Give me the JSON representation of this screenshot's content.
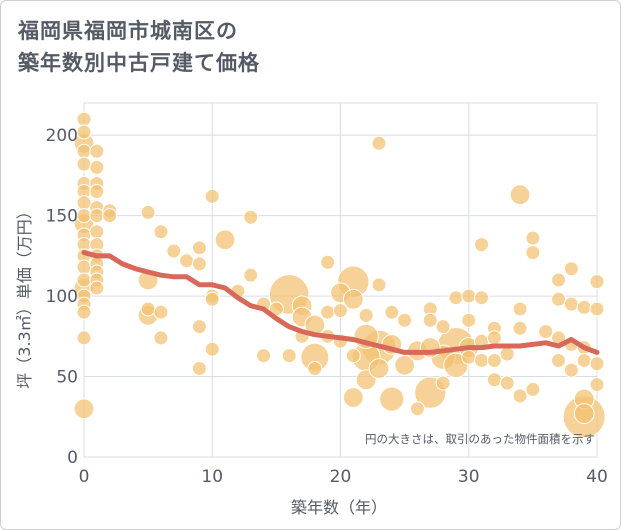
{
  "title_line1": "福岡県福岡市城南区の",
  "title_line2": "築年数別中古戸建て価格",
  "chart_data": {
    "type": "scatter",
    "title": "福岡県福岡市城南区の築年数別中古戸建て価格",
    "xlabel": "築年数（年）",
    "ylabel": "坪（3.3㎡）単価（万円）",
    "xlim": [
      0,
      40
    ],
    "ylim": [
      0,
      220
    ],
    "xticks": [
      0,
      10,
      20,
      30,
      40
    ],
    "yticks": [
      0,
      50,
      100,
      150,
      200
    ],
    "note": "円の大きさは、取引のあった物件面積を示す",
    "colors": {
      "bubble": "#f3c070",
      "bubble_stroke": "#ffffff",
      "trend": "#d8695a",
      "grid": "#d8dde3"
    },
    "points": [
      {
        "x": 0,
        "y": 210,
        "s": 1
      },
      {
        "x": 0,
        "y": 202,
        "s": 1
      },
      {
        "x": 0,
        "y": 195,
        "s": 2
      },
      {
        "x": 0,
        "y": 190,
        "s": 1
      },
      {
        "x": 0,
        "y": 182,
        "s": 1
      },
      {
        "x": 0,
        "y": 170,
        "s": 1
      },
      {
        "x": 0,
        "y": 165,
        "s": 1
      },
      {
        "x": 0,
        "y": 158,
        "s": 1
      },
      {
        "x": 0,
        "y": 150,
        "s": 1
      },
      {
        "x": 0,
        "y": 145,
        "s": 2
      },
      {
        "x": 0,
        "y": 138,
        "s": 1
      },
      {
        "x": 0,
        "y": 132,
        "s": 1
      },
      {
        "x": 0,
        "y": 125,
        "s": 1
      },
      {
        "x": 0,
        "y": 118,
        "s": 1
      },
      {
        "x": 0,
        "y": 110,
        "s": 1
      },
      {
        "x": 0,
        "y": 105,
        "s": 2
      },
      {
        "x": 0,
        "y": 100,
        "s": 1
      },
      {
        "x": 0,
        "y": 95,
        "s": 1
      },
      {
        "x": 0,
        "y": 90,
        "s": 1
      },
      {
        "x": 0,
        "y": 74,
        "s": 1
      },
      {
        "x": 0,
        "y": 30,
        "s": 2
      },
      {
        "x": 1,
        "y": 190,
        "s": 1
      },
      {
        "x": 1,
        "y": 180,
        "s": 1
      },
      {
        "x": 1,
        "y": 170,
        "s": 1
      },
      {
        "x": 1,
        "y": 165,
        "s": 1
      },
      {
        "x": 1,
        "y": 155,
        "s": 1
      },
      {
        "x": 1,
        "y": 150,
        "s": 1
      },
      {
        "x": 1,
        "y": 140,
        "s": 1
      },
      {
        "x": 1,
        "y": 132,
        "s": 1
      },
      {
        "x": 1,
        "y": 125,
        "s": 1
      },
      {
        "x": 1,
        "y": 120,
        "s": 1
      },
      {
        "x": 1,
        "y": 115,
        "s": 1
      },
      {
        "x": 1,
        "y": 110,
        "s": 1
      },
      {
        "x": 1,
        "y": 105,
        "s": 1
      },
      {
        "x": 2,
        "y": 153,
        "s": 1
      },
      {
        "x": 2,
        "y": 150,
        "s": 1
      },
      {
        "x": 5,
        "y": 152,
        "s": 1
      },
      {
        "x": 5,
        "y": 110,
        "s": 2
      },
      {
        "x": 5,
        "y": 92,
        "s": 1
      },
      {
        "x": 5,
        "y": 88,
        "s": 2
      },
      {
        "x": 6,
        "y": 140,
        "s": 1
      },
      {
        "x": 6,
        "y": 90,
        "s": 1
      },
      {
        "x": 6,
        "y": 74,
        "s": 1
      },
      {
        "x": 7,
        "y": 128,
        "s": 1
      },
      {
        "x": 8,
        "y": 122,
        "s": 1
      },
      {
        "x": 9,
        "y": 130,
        "s": 1
      },
      {
        "x": 9,
        "y": 120,
        "s": 1
      },
      {
        "x": 9,
        "y": 81,
        "s": 1
      },
      {
        "x": 9,
        "y": 55,
        "s": 1
      },
      {
        "x": 10,
        "y": 162,
        "s": 1
      },
      {
        "x": 10,
        "y": 100,
        "s": 1
      },
      {
        "x": 10,
        "y": 98,
        "s": 1
      },
      {
        "x": 10,
        "y": 67,
        "s": 1
      },
      {
        "x": 11,
        "y": 135,
        "s": 2
      },
      {
        "x": 12,
        "y": 103,
        "s": 1
      },
      {
        "x": 13,
        "y": 149,
        "s": 1
      },
      {
        "x": 13,
        "y": 113,
        "s": 1
      },
      {
        "x": 14,
        "y": 95,
        "s": 1
      },
      {
        "x": 14,
        "y": 63,
        "s": 1
      },
      {
        "x": 15,
        "y": 92,
        "s": 1
      },
      {
        "x": 16,
        "y": 101,
        "s": 8
      },
      {
        "x": 16,
        "y": 63,
        "s": 1
      },
      {
        "x": 17,
        "y": 94,
        "s": 2
      },
      {
        "x": 17,
        "y": 87,
        "s": 2
      },
      {
        "x": 17,
        "y": 75,
        "s": 1
      },
      {
        "x": 18,
        "y": 62,
        "s": 4
      },
      {
        "x": 18,
        "y": 82,
        "s": 2
      },
      {
        "x": 18,
        "y": 55,
        "s": 1
      },
      {
        "x": 19,
        "y": 90,
        "s": 1
      },
      {
        "x": 19,
        "y": 75,
        "s": 1
      },
      {
        "x": 19,
        "y": 121,
        "s": 1
      },
      {
        "x": 20,
        "y": 102,
        "s": 2
      },
      {
        "x": 20,
        "y": 91,
        "s": 1
      },
      {
        "x": 20,
        "y": 72,
        "s": 1
      },
      {
        "x": 21,
        "y": 109,
        "s": 5
      },
      {
        "x": 21,
        "y": 98,
        "s": 2
      },
      {
        "x": 21,
        "y": 63,
        "s": 1
      },
      {
        "x": 21,
        "y": 37,
        "s": 2
      },
      {
        "x": 22,
        "y": 88,
        "s": 1
      },
      {
        "x": 22,
        "y": 75,
        "s": 3
      },
      {
        "x": 22,
        "y": 62,
        "s": 4
      },
      {
        "x": 22,
        "y": 48,
        "s": 2
      },
      {
        "x": 23,
        "y": 195,
        "s": 1
      },
      {
        "x": 23,
        "y": 107,
        "s": 1
      },
      {
        "x": 23,
        "y": 68,
        "s": 6
      },
      {
        "x": 23,
        "y": 55,
        "s": 2
      },
      {
        "x": 24,
        "y": 90,
        "s": 1
      },
      {
        "x": 24,
        "y": 70,
        "s": 2
      },
      {
        "x": 24,
        "y": 36,
        "s": 3
      },
      {
        "x": 25,
        "y": 85,
        "s": 1
      },
      {
        "x": 25,
        "y": 57,
        "s": 2
      },
      {
        "x": 26,
        "y": 66,
        "s": 2
      },
      {
        "x": 26,
        "y": 30,
        "s": 1
      },
      {
        "x": 27,
        "y": 92,
        "s": 1
      },
      {
        "x": 27,
        "y": 85,
        "s": 1
      },
      {
        "x": 27,
        "y": 68,
        "s": 2
      },
      {
        "x": 27,
        "y": 40,
        "s": 5
      },
      {
        "x": 28,
        "y": 81,
        "s": 1
      },
      {
        "x": 28,
        "y": 62,
        "s": 3
      },
      {
        "x": 28,
        "y": 46,
        "s": 1
      },
      {
        "x": 29,
        "y": 99,
        "s": 1
      },
      {
        "x": 29,
        "y": 69,
        "s": 7
      },
      {
        "x": 29,
        "y": 57,
        "s": 3
      },
      {
        "x": 30,
        "y": 100,
        "s": 1
      },
      {
        "x": 30,
        "y": 85,
        "s": 1
      },
      {
        "x": 30,
        "y": 68,
        "s": 2
      },
      {
        "x": 30,
        "y": 62,
        "s": 1
      },
      {
        "x": 31,
        "y": 132,
        "s": 1
      },
      {
        "x": 31,
        "y": 99,
        "s": 1
      },
      {
        "x": 31,
        "y": 72,
        "s": 1
      },
      {
        "x": 31,
        "y": 60,
        "s": 1
      },
      {
        "x": 32,
        "y": 80,
        "s": 1
      },
      {
        "x": 32,
        "y": 74,
        "s": 1
      },
      {
        "x": 32,
        "y": 60,
        "s": 1
      },
      {
        "x": 32,
        "y": 48,
        "s": 1
      },
      {
        "x": 33,
        "y": 64,
        "s": 1
      },
      {
        "x": 33,
        "y": 46,
        "s": 1
      },
      {
        "x": 34,
        "y": 163,
        "s": 2
      },
      {
        "x": 34,
        "y": 92,
        "s": 1
      },
      {
        "x": 34,
        "y": 80,
        "s": 1
      },
      {
        "x": 34,
        "y": 38,
        "s": 1
      },
      {
        "x": 35,
        "y": 136,
        "s": 1
      },
      {
        "x": 35,
        "y": 127,
        "s": 1
      },
      {
        "x": 35,
        "y": 42,
        "s": 1
      },
      {
        "x": 36,
        "y": 78,
        "s": 1
      },
      {
        "x": 37,
        "y": 110,
        "s": 1
      },
      {
        "x": 37,
        "y": 98,
        "s": 1
      },
      {
        "x": 37,
        "y": 74,
        "s": 1
      },
      {
        "x": 37,
        "y": 60,
        "s": 1
      },
      {
        "x": 38,
        "y": 117,
        "s": 1
      },
      {
        "x": 38,
        "y": 95,
        "s": 1
      },
      {
        "x": 38,
        "y": 70,
        "s": 1
      },
      {
        "x": 38,
        "y": 54,
        "s": 1
      },
      {
        "x": 39,
        "y": 93,
        "s": 1
      },
      {
        "x": 39,
        "y": 68,
        "s": 1
      },
      {
        "x": 39,
        "y": 60,
        "s": 1
      },
      {
        "x": 39,
        "y": 25,
        "s": 9
      },
      {
        "x": 39,
        "y": 36,
        "s": 2
      },
      {
        "x": 39,
        "y": 27,
        "s": 2
      },
      {
        "x": 40,
        "y": 109,
        "s": 1
      },
      {
        "x": 40,
        "y": 92,
        "s": 1
      },
      {
        "x": 40,
        "y": 58,
        "s": 1
      },
      {
        "x": 40,
        "y": 45,
        "s": 1
      }
    ],
    "trend": [
      {
        "x": 0,
        "y": 127
      },
      {
        "x": 1,
        "y": 125
      },
      {
        "x": 2,
        "y": 125
      },
      {
        "x": 3,
        "y": 120
      },
      {
        "x": 4,
        "y": 117
      },
      {
        "x": 5,
        "y": 115
      },
      {
        "x": 6,
        "y": 113
      },
      {
        "x": 7,
        "y": 112
      },
      {
        "x": 8,
        "y": 112
      },
      {
        "x": 9,
        "y": 107
      },
      {
        "x": 10,
        "y": 107
      },
      {
        "x": 11,
        "y": 105
      },
      {
        "x": 12,
        "y": 99
      },
      {
        "x": 13,
        "y": 94
      },
      {
        "x": 14,
        "y": 92
      },
      {
        "x": 15,
        "y": 86
      },
      {
        "x": 16,
        "y": 81
      },
      {
        "x": 17,
        "y": 78
      },
      {
        "x": 18,
        "y": 76
      },
      {
        "x": 19,
        "y": 75
      },
      {
        "x": 20,
        "y": 74
      },
      {
        "x": 21,
        "y": 73
      },
      {
        "x": 22,
        "y": 71
      },
      {
        "x": 23,
        "y": 69
      },
      {
        "x": 24,
        "y": 67
      },
      {
        "x": 25,
        "y": 65
      },
      {
        "x": 26,
        "y": 65
      },
      {
        "x": 27,
        "y": 65
      },
      {
        "x": 28,
        "y": 66
      },
      {
        "x": 29,
        "y": 67
      },
      {
        "x": 30,
        "y": 68
      },
      {
        "x": 31,
        "y": 68
      },
      {
        "x": 32,
        "y": 69
      },
      {
        "x": 33,
        "y": 69
      },
      {
        "x": 34,
        "y": 69
      },
      {
        "x": 35,
        "y": 70
      },
      {
        "x": 36,
        "y": 71
      },
      {
        "x": 37,
        "y": 69
      },
      {
        "x": 38,
        "y": 73
      },
      {
        "x": 39,
        "y": 68
      },
      {
        "x": 40,
        "y": 65
      }
    ]
  }
}
